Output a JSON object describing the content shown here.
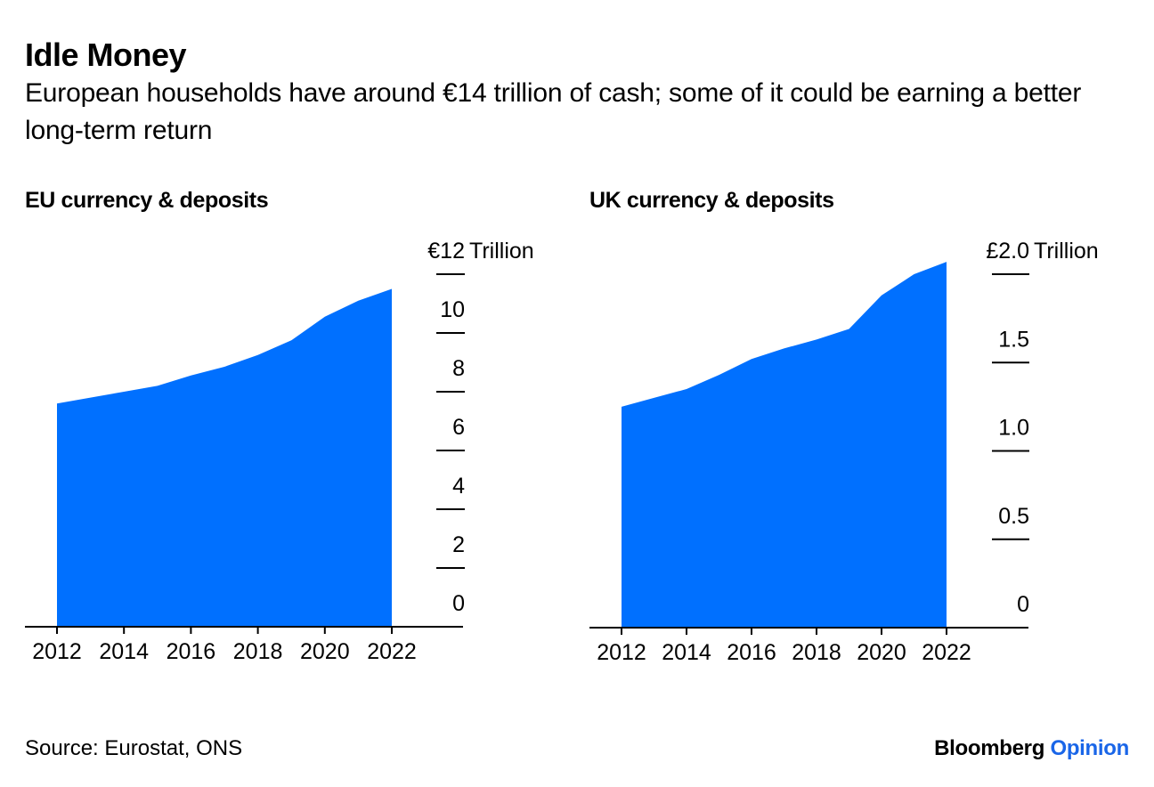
{
  "header": {
    "title": "Idle Money",
    "subtitle": "European households have around €14 trillion of cash; some of it could be earning a better long-term return"
  },
  "footer": {
    "source": "Source: Eurostat, ONS",
    "brand_main": "Bloomberg",
    "brand_accent": "Opinion"
  },
  "colors": {
    "area_fill": "#0070FF",
    "axis": "#000000",
    "brand_accent": "#1A66E8"
  },
  "chart_data": [
    {
      "type": "area",
      "title": "EU currency & deposits",
      "xlabel": "",
      "ylabel": "€ Trillion",
      "unit_label": "Trillion",
      "x": [
        2012,
        2013,
        2014,
        2015,
        2016,
        2017,
        2018,
        2019,
        2020,
        2021,
        2022
      ],
      "series": [
        {
          "name": "EU currency & deposits",
          "values": [
            7.6,
            7.8,
            8.0,
            8.2,
            8.55,
            8.85,
            9.25,
            9.75,
            10.55,
            11.1,
            11.5
          ]
        }
      ],
      "xticks": [
        "2012",
        "2014",
        "2016",
        "2018",
        "2020",
        "2022"
      ],
      "yticks": [
        0,
        2,
        4,
        6,
        8,
        10,
        12
      ],
      "ytick_labels": [
        "0",
        "2",
        "4",
        "6",
        "8",
        "10",
        "€12"
      ],
      "ylim": [
        0,
        12
      ],
      "xlim": [
        2011.05,
        2024.1
      ],
      "grid": false,
      "legend": "none"
    },
    {
      "type": "area",
      "title": "UK currency & deposits",
      "xlabel": "",
      "ylabel": "£ Trillion",
      "unit_label": "Trillion",
      "x": [
        2012,
        2013,
        2014,
        2015,
        2016,
        2017,
        2018,
        2019,
        2020,
        2021,
        2022
      ],
      "series": [
        {
          "name": "UK currency & deposits",
          "values": [
            1.25,
            1.3,
            1.35,
            1.43,
            1.52,
            1.58,
            1.63,
            1.69,
            1.88,
            2.0,
            2.07
          ]
        }
      ],
      "xticks": [
        "2012",
        "2014",
        "2016",
        "2018",
        "2020",
        "2022"
      ],
      "yticks": [
        0,
        0.5,
        1.0,
        1.5,
        2.0
      ],
      "ytick_labels": [
        "0",
        "0.5",
        "1.0",
        "1.5",
        "£2.0"
      ],
      "ylim": [
        0,
        2.0
      ],
      "xlim": [
        2011.0,
        2024.0
      ],
      "grid": false,
      "legend": "none"
    }
  ]
}
